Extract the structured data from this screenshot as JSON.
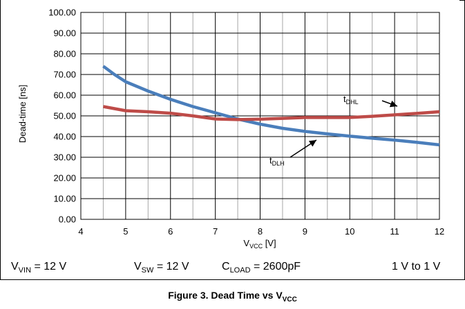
{
  "chart_data": {
    "type": "line",
    "xlabel_main": "V",
    "xlabel_sub": "VCC",
    "xlabel_unit": " [V]",
    "ylabel": "Dead-time [ns]",
    "xlim": [
      4,
      12
    ],
    "ylim": [
      0,
      100
    ],
    "grid": true,
    "x_ticks": [
      "4",
      "5",
      "6",
      "7",
      "8",
      "9",
      "10",
      "11",
      "12"
    ],
    "y_ticks": [
      "0.00",
      "10.00",
      "20.00",
      "30.00",
      "40.00",
      "50.00",
      "60.00",
      "70.00",
      "80.00",
      "90.00",
      "100.00"
    ],
    "series": [
      {
        "label_main": "t",
        "label_sub": "DLH",
        "color": "#4a7ebb",
        "points": [
          [
            4.5,
            74
          ],
          [
            4.75,
            70
          ],
          [
            5,
            66.5
          ],
          [
            5.5,
            62
          ],
          [
            6,
            58
          ],
          [
            6.5,
            54.5
          ],
          [
            7,
            51.5
          ],
          [
            7.5,
            48.5
          ],
          [
            8,
            46
          ],
          [
            8.5,
            44
          ],
          [
            9,
            42.5
          ],
          [
            9.5,
            41.3
          ],
          [
            10,
            40.2
          ],
          [
            10.5,
            39.2
          ],
          [
            11,
            38.3
          ],
          [
            11.5,
            37.2
          ],
          [
            12,
            36
          ]
        ]
      },
      {
        "label_main": "t",
        "label_sub": "DHL",
        "color": "#be4b48",
        "points": [
          [
            4.5,
            54.5
          ],
          [
            5,
            52.5
          ],
          [
            5.5,
            52
          ],
          [
            6,
            51.3
          ],
          [
            6.5,
            50
          ],
          [
            7,
            48.5
          ],
          [
            7.5,
            48.2
          ],
          [
            8,
            48.4
          ],
          [
            8.5,
            48.8
          ],
          [
            9,
            49.2
          ],
          [
            9.5,
            49.2
          ],
          [
            10,
            49.2
          ],
          [
            10.5,
            49.8
          ],
          [
            11,
            50.5
          ],
          [
            11.5,
            51.2
          ],
          [
            12,
            52
          ]
        ]
      }
    ]
  },
  "conditions": [
    {
      "main": "V",
      "sub": "VIN",
      "rest": " = 12 V"
    },
    {
      "main": "V",
      "sub": "SW",
      "rest": " = 12 V"
    },
    {
      "main": "C",
      "sub": "LOAD",
      "rest": " = 2600pF"
    },
    {
      "main": "",
      "sub": "",
      "rest": "1 V to 1 V"
    }
  ],
  "caption": {
    "main": "Figure 3. Dead Time vs V",
    "sub": "VCC"
  }
}
